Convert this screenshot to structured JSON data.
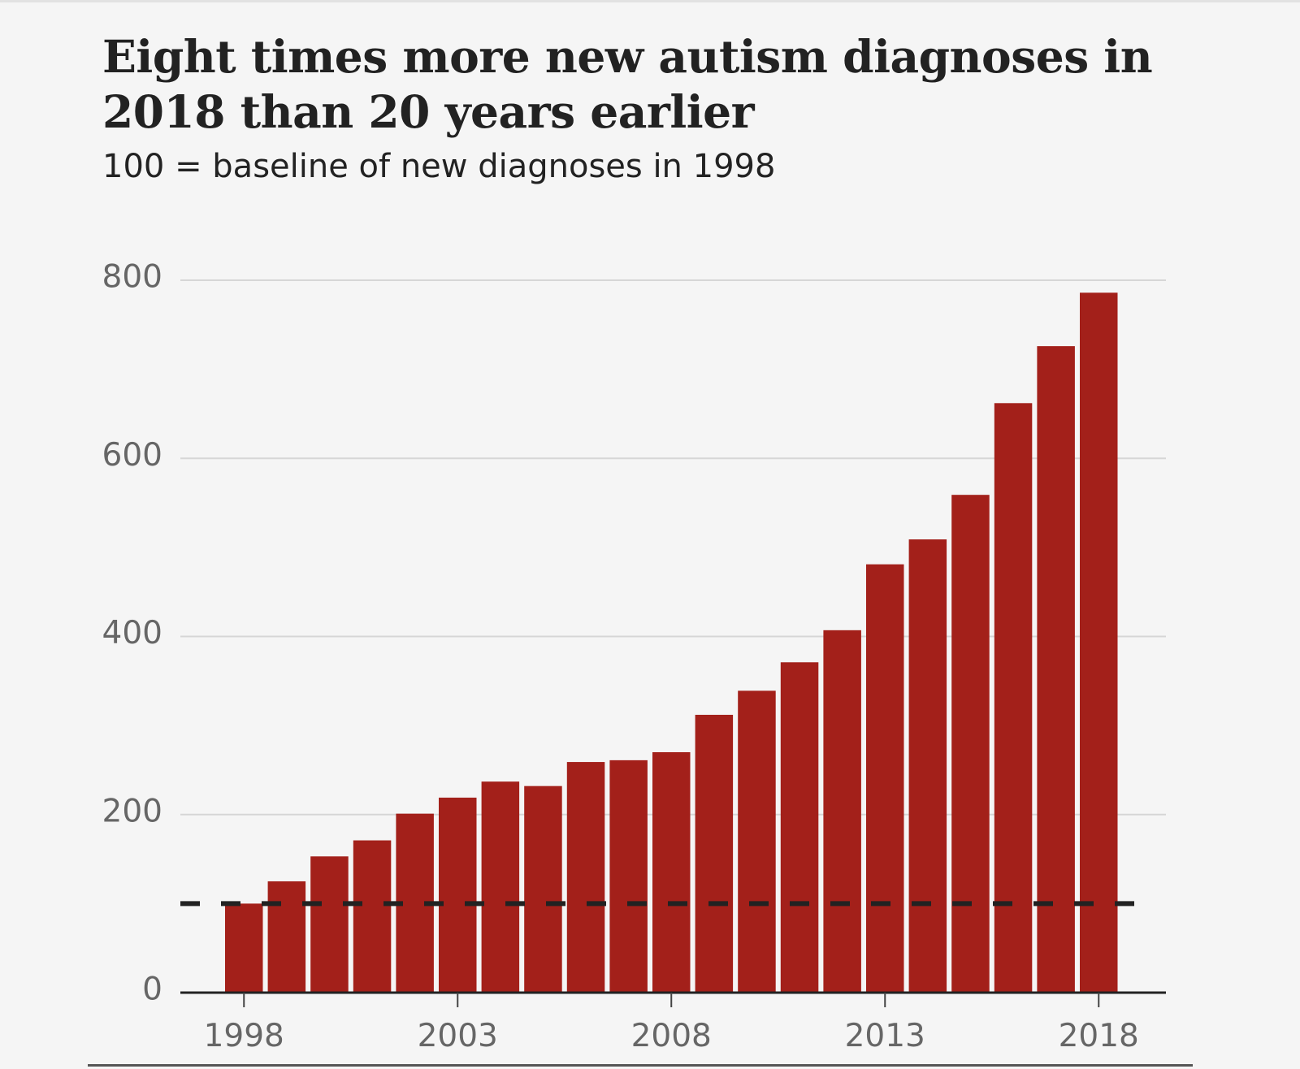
{
  "chart_data": {
    "type": "bar",
    "title": "Eight times more new autism diagnoses in 2018 than 20 years earlier",
    "subtitle": "100 = baseline of new diagnoses in 1998",
    "xlabel": "",
    "ylabel": "",
    "categories": [
      "1998",
      "1999",
      "2000",
      "2001",
      "2002",
      "2003",
      "2004",
      "2005",
      "2006",
      "2007",
      "2008",
      "2009",
      "2010",
      "2011",
      "2012",
      "2013",
      "2014",
      "2015",
      "2016",
      "2017",
      "2018"
    ],
    "values": [
      100,
      125,
      153,
      171,
      201,
      219,
      237,
      232,
      259,
      261,
      270,
      312,
      339,
      371,
      407,
      481,
      509,
      559,
      662,
      726,
      786
    ],
    "x_tick_labels": [
      "1998",
      "2003",
      "2008",
      "2013",
      "2018"
    ],
    "y_ticks": [
      0,
      200,
      400,
      600,
      800
    ],
    "ylim": [
      0,
      800
    ],
    "baseline": 100,
    "grid": true,
    "legend": "none",
    "bar_color": "#a3201a",
    "baseline_color": "#222222"
  }
}
